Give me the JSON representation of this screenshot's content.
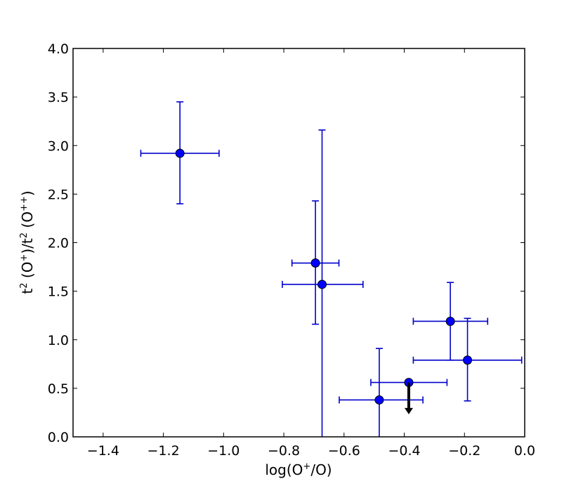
{
  "chart_data": {
    "type": "scatter",
    "title": "",
    "xlabel": {
      "pre": "log(O",
      "sup": "+",
      "post": "/O)"
    },
    "ylabel": {
      "a": "t",
      "a_sup": "2",
      "b": " (O",
      "b_sup": "+",
      "c": ")/t",
      "c_sup": "2",
      "d": " (O",
      "d_sup": "++",
      "e": ")"
    },
    "xlim": [
      -1.5,
      0.0
    ],
    "ylim": [
      0.0,
      4.0
    ],
    "xticks": [
      -1.4,
      -1.2,
      -1.0,
      -0.8,
      -0.6,
      -0.4,
      -0.2,
      0.0
    ],
    "xtick_labels": [
      "−1.4",
      "−1.2",
      "−1.0",
      "−0.8",
      "−0.6",
      "−0.4",
      "−0.2",
      "0.0"
    ],
    "yticks": [
      0.0,
      0.5,
      1.0,
      1.5,
      2.0,
      2.5,
      3.0,
      3.5,
      4.0
    ],
    "ytick_labels": [
      "0.0",
      "0.5",
      "1.0",
      "1.5",
      "2.0",
      "2.5",
      "3.0",
      "3.5",
      "4.0"
    ],
    "grid": false,
    "marker_color": "#0000ff",
    "errorbar_color": "#0000cc",
    "arrow_color": "#000000",
    "points": [
      {
        "x": -1.145,
        "y": 2.92,
        "x_lo": -1.275,
        "x_hi": -1.015,
        "y_lo": 2.4,
        "y_hi": 3.45
      },
      {
        "x": -0.695,
        "y": 1.79,
        "x_lo": -0.773,
        "x_hi": -0.617,
        "y_lo": 1.16,
        "y_hi": 2.43
      },
      {
        "x": -0.673,
        "y": 1.57,
        "x_lo": -0.805,
        "x_hi": -0.537,
        "y_lo": 0.0,
        "y_hi": 3.16
      },
      {
        "x": -0.483,
        "y": 0.38,
        "x_lo": -0.616,
        "x_hi": -0.338,
        "y_lo": 0.0,
        "y_hi": 0.91
      },
      {
        "x": -0.385,
        "y": 0.56,
        "x_lo": -0.511,
        "x_hi": -0.258,
        "upper_limit": true,
        "arrow_to": 0.24
      },
      {
        "x": -0.247,
        "y": 1.19,
        "x_lo": -0.37,
        "x_hi": -0.123,
        "y_lo": 0.79,
        "y_hi": 1.59
      },
      {
        "x": -0.19,
        "y": 0.79,
        "x_lo": -0.37,
        "x_hi": -0.01,
        "y_lo": 0.37,
        "y_hi": 1.22
      }
    ]
  }
}
